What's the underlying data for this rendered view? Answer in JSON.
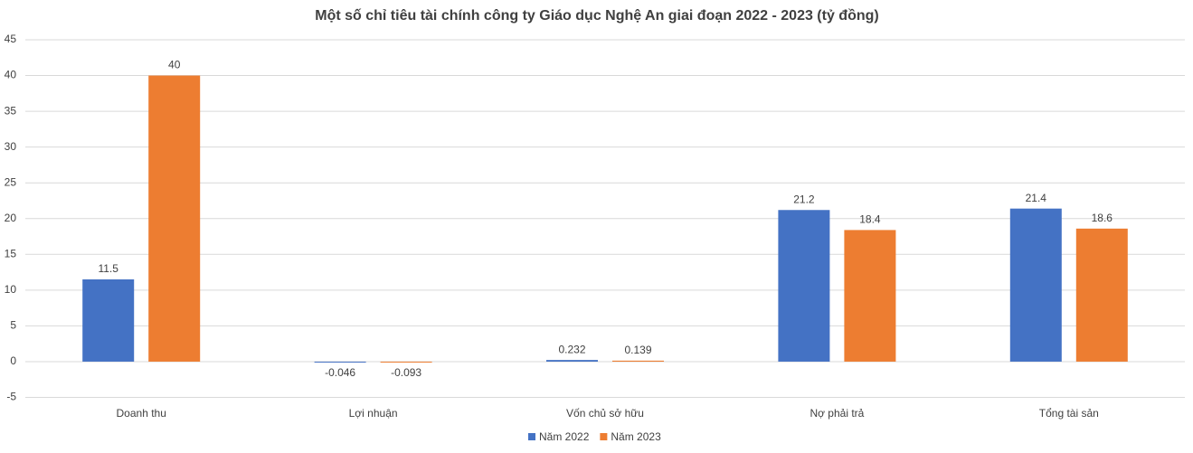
{
  "chart_data": {
    "type": "bar",
    "title": "Một số chỉ tiêu tài chính công ty Giáo dục Nghệ An giai đoạn 2022 - 2023 (tỷ đồng)",
    "categories": [
      "Doanh thu",
      "Lợi nhuận",
      "Vốn chủ sở hữu",
      "Nợ phải trả",
      "Tổng tài sản"
    ],
    "series": [
      {
        "name": "Năm 2022",
        "color": "#4472c4",
        "values": [
          11.5,
          -0.046,
          0.232,
          21.2,
          21.4
        ]
      },
      {
        "name": "Năm 2023",
        "color": "#ed7d31",
        "values": [
          40,
          -0.093,
          0.139,
          18.4,
          18.6
        ]
      }
    ],
    "ylim": [
      -5,
      45
    ],
    "yticks": [
      -5,
      0,
      5,
      10,
      15,
      20,
      25,
      30,
      35,
      40,
      45
    ],
    "grid": true,
    "legend": "bottom"
  }
}
